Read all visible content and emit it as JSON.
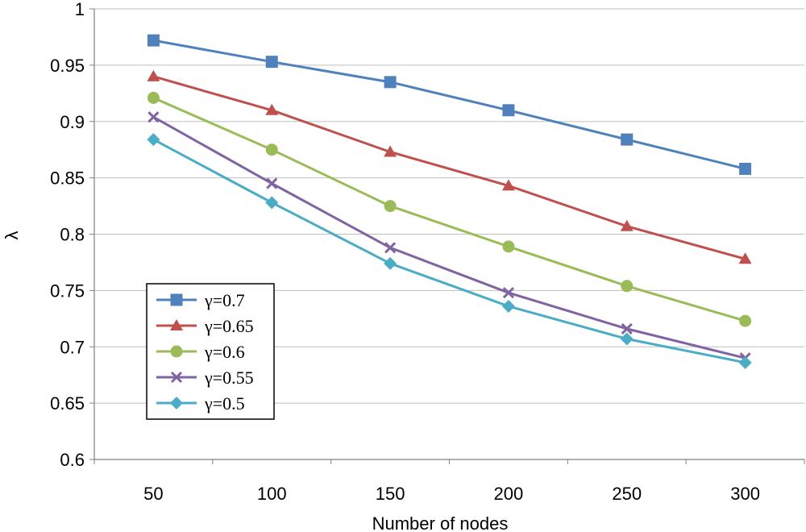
{
  "chart_data": {
    "type": "line",
    "title": "",
    "xlabel": "Number of nodes",
    "ylabel": "λ",
    "categories": [
      "50",
      "100",
      "150",
      "200",
      "250",
      "300"
    ],
    "ylim": [
      0.6,
      1
    ],
    "yticks": [
      "0.6",
      "0.65",
      "0.7",
      "0.75",
      "0.8",
      "0.85",
      "0.9",
      "0.95",
      "1"
    ],
    "ytick_values": [
      0.6,
      0.65,
      0.7,
      0.75,
      0.8,
      0.85,
      0.9,
      0.95,
      1.0
    ],
    "grid": "horizontal",
    "legend_position": "bottom-left",
    "series": [
      {
        "name": "γ=0.7",
        "marker": "square",
        "color": "#4F81BD",
        "values": [
          0.972,
          0.953,
          0.935,
          0.91,
          0.884,
          0.858
        ]
      },
      {
        "name": "γ=0.65",
        "marker": "triangle",
        "color": "#C0504D",
        "values": [
          0.94,
          0.91,
          0.873,
          0.843,
          0.807,
          0.778
        ]
      },
      {
        "name": "γ=0.6",
        "marker": "circle",
        "color": "#9BBB59",
        "values": [
          0.921,
          0.875,
          0.825,
          0.789,
          0.754,
          0.723
        ]
      },
      {
        "name": "γ=0.55",
        "marker": "cross",
        "color": "#8064A2",
        "values": [
          0.904,
          0.845,
          0.788,
          0.748,
          0.716,
          0.69
        ]
      },
      {
        "name": "γ=0.5",
        "marker": "diamond",
        "color": "#4BACC6",
        "values": [
          0.884,
          0.828,
          0.774,
          0.736,
          0.707,
          0.686
        ]
      }
    ]
  }
}
